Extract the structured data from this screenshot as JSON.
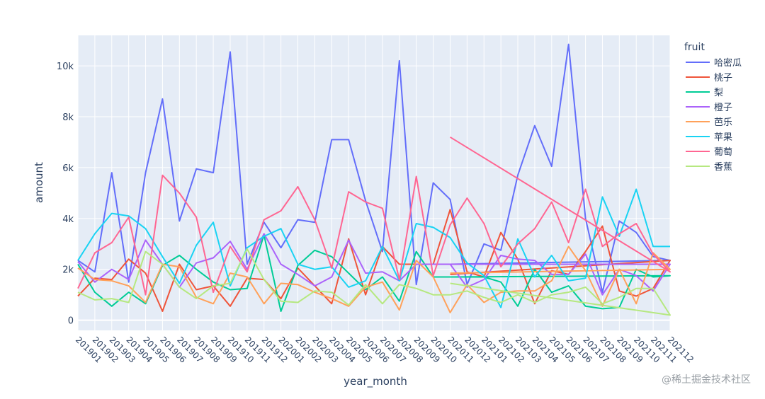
{
  "chart_data": {
    "type": "line",
    "xlabel": "year_month",
    "ylabel": "amount",
    "legend_title": "fruit",
    "legend_position": "right",
    "grid": true,
    "ylim": [
      -400,
      11200
    ],
    "yticks": [
      0,
      2000,
      4000,
      6000,
      8000,
      10000
    ],
    "ytick_labels": [
      "0",
      "2k",
      "4k",
      "6k",
      "8k",
      "10k"
    ],
    "categories": [
      "201901",
      "201902",
      "201903",
      "201904",
      "201905",
      "201906",
      "201907",
      "201908",
      "201909",
      "201910",
      "201911",
      "201912",
      "202001",
      "202002",
      "202003",
      "202004",
      "202005",
      "202006",
      "202007",
      "202008",
      "202009",
      "202010",
      "202011",
      "202012",
      "202101",
      "202102",
      "202103",
      "202104",
      "202105",
      "202106",
      "202107",
      "202108",
      "202109",
      "202110",
      "202111",
      "202112"
    ],
    "series": [
      {
        "name": "哈密瓜",
        "color": "#636efa",
        "x": [
          "201901",
          "201902",
          "201903",
          "201904",
          "201905",
          "201906",
          "201907",
          "201908",
          "201909",
          "201910",
          "201911",
          "201912",
          "202001",
          "202002",
          "202003",
          "202004",
          "202005",
          "202006",
          "202007",
          "202008",
          "202009",
          "202010",
          "202011",
          "202012",
          "202101",
          "202102",
          "202103",
          "202104",
          "202105",
          "202106",
          "202107",
          "202108",
          "202109",
          "202110",
          "202111",
          "202112",
          "202011"
        ],
        "values": [
          2350,
          1900,
          5800,
          1500,
          5800,
          8700,
          3900,
          5950,
          5800,
          10550,
          2200,
          3850,
          2850,
          3950,
          3850,
          7100,
          7100,
          4700,
          2700,
          10200,
          1400,
          5400,
          4750,
          1400,
          3000,
          2750,
          5700,
          7650,
          6050,
          10850,
          4000,
          1100,
          3900,
          3450,
          2500,
          2350,
          2200
        ]
      },
      {
        "name": "桃子",
        "color": "#ef553b",
        "x": [
          "201901",
          "201902",
          "201903",
          "201904",
          "201905",
          "201906",
          "201907",
          "201908",
          "201909",
          "201910",
          "201911",
          "201912",
          "202001",
          "202002",
          "202003",
          "202004",
          "202005",
          "202006",
          "202007",
          "202008",
          "202009",
          "202010",
          "202011",
          "202012",
          "202101",
          "202102",
          "202103",
          "202104",
          "202105",
          "202106",
          "202107",
          "202108",
          "202109",
          "202110",
          "202111",
          "202112",
          "202011"
        ],
        "values": [
          950,
          1650,
          1600,
          2400,
          1850,
          350,
          2200,
          1200,
          1350,
          550,
          1650,
          1600,
          850,
          2050,
          1350,
          650,
          3200,
          1000,
          2900,
          2200,
          2200,
          2200,
          4350,
          1900,
          1700,
          3450,
          2400,
          650,
          1950,
          1800,
          2700,
          3700,
          1150,
          950,
          1250,
          2350,
          1800
        ]
      },
      {
        "name": "梨",
        "color": "#00cc96",
        "x": [
          "201901",
          "201902",
          "201903",
          "201904",
          "201905",
          "201906",
          "201907",
          "201908",
          "201909",
          "201910",
          "201911",
          "201912",
          "202001",
          "202002",
          "202003",
          "202004",
          "202005",
          "202006",
          "202007",
          "202008",
          "202009",
          "202010",
          "202011",
          "202012",
          "202101",
          "202102",
          "202103",
          "202104",
          "202105",
          "202106",
          "202107",
          "202108",
          "202109",
          "202110",
          "202111",
          "202112",
          "202011"
        ],
        "values": [
          2200,
          1100,
          550,
          1100,
          650,
          2150,
          2550,
          2000,
          1500,
          1200,
          1250,
          3350,
          350,
          2150,
          2750,
          2500,
          1850,
          1200,
          1700,
          750,
          2700,
          1700,
          1700,
          1700,
          1700,
          1500,
          550,
          2000,
          1100,
          1350,
          550,
          450,
          500,
          2000,
          1700,
          1750,
          1700
        ]
      },
      {
        "name": "橙子",
        "color": "#ab63fa",
        "x": [
          "201901",
          "201902",
          "201903",
          "201904",
          "201905",
          "201906",
          "201907",
          "201908",
          "201909",
          "201910",
          "201911",
          "201912",
          "202001",
          "202002",
          "202003",
          "202004",
          "202005",
          "202006",
          "202007",
          "202008",
          "202009",
          "202010",
          "202011",
          "202012",
          "202101",
          "202102",
          "202103",
          "202104",
          "202105",
          "202106",
          "202107",
          "202108",
          "202109",
          "202110",
          "202111",
          "202112",
          "202011"
        ],
        "values": [
          2300,
          1500,
          2000,
          1600,
          3150,
          2200,
          1300,
          2250,
          2450,
          3100,
          2000,
          3400,
          2200,
          1800,
          1350,
          1700,
          3150,
          1850,
          1900,
          1550,
          2200,
          2200,
          2200,
          1300,
          1600,
          2550,
          2400,
          2350,
          1800,
          1800,
          2600,
          1000,
          2000,
          1750,
          1150,
          2200,
          2200
        ]
      },
      {
        "name": "芭乐",
        "color": "#ffa15a",
        "x": [
          "201901",
          "201902",
          "201903",
          "201904",
          "201905",
          "201906",
          "201907",
          "201908",
          "201909",
          "201910",
          "201911",
          "201912",
          "202001",
          "202002",
          "202003",
          "202004",
          "202005",
          "202006",
          "202007",
          "202008",
          "202009",
          "202010",
          "202011",
          "202012",
          "202101",
          "202102",
          "202103",
          "202104",
          "202105",
          "202106",
          "202107",
          "202108",
          "202109",
          "202110",
          "202111",
          "202112",
          "202011"
        ],
        "values": [
          2050,
          1600,
          1550,
          1350,
          700,
          2200,
          2100,
          900,
          650,
          1850,
          1700,
          650,
          1450,
          1400,
          1100,
          850,
          550,
          1300,
          1500,
          400,
          2350,
          1700,
          300,
          1400,
          700,
          1100,
          1150,
          1150,
          1550,
          2900,
          1950,
          550,
          2000,
          650,
          2650,
          2000,
          1850
        ]
      },
      {
        "name": "苹果",
        "color": "#19d3f3",
        "x": [
          "201901",
          "201902",
          "201903",
          "201904",
          "201905",
          "201906",
          "201907",
          "201908",
          "201909",
          "201910",
          "201911",
          "201912",
          "202001",
          "202002",
          "202003",
          "202004",
          "202005",
          "202006",
          "202007",
          "202008",
          "202009",
          "202010",
          "202011",
          "202012",
          "202101",
          "202102",
          "202103",
          "202104",
          "202105",
          "202106",
          "202107",
          "202108",
          "202109",
          "202110",
          "202111",
          "202112"
        ],
        "values": [
          2350,
          3400,
          4200,
          4100,
          3600,
          2500,
          1450,
          2950,
          3850,
          1350,
          2850,
          3300,
          3600,
          2200,
          2000,
          2100,
          1300,
          1550,
          2900,
          1550,
          3800,
          3650,
          3250,
          2250,
          1750,
          500,
          3200,
          1700,
          2550,
          1550,
          1650,
          4850,
          3300,
          5150,
          2900,
          2900
        ]
      },
      {
        "name": "葡萄",
        "color": "#ff6692",
        "x": [
          "201901",
          "201902",
          "201903",
          "201904",
          "201905",
          "201906",
          "201907",
          "201908",
          "201909",
          "201910",
          "201911",
          "201912",
          "202001",
          "202002",
          "202003",
          "202004",
          "202005",
          "202006",
          "202007",
          "202008",
          "202009",
          "202010",
          "202011",
          "202012",
          "202101",
          "202102",
          "202103",
          "202104",
          "202105",
          "202106",
          "202107",
          "202108",
          "202109",
          "202110",
          "202111",
          "202112",
          "202011"
        ],
        "values": [
          1250,
          2650,
          3050,
          4050,
          1000,
          5700,
          5000,
          4050,
          1100,
          2900,
          1900,
          3950,
          4300,
          5250,
          3950,
          2050,
          5050,
          4650,
          4400,
          1600,
          5650,
          1750,
          3750,
          4800,
          3800,
          2100,
          3000,
          3600,
          4650,
          3050,
          5150,
          2900,
          3400,
          3800,
          2600,
          1900,
          7200
        ]
      },
      {
        "name": "香蕉",
        "color": "#b6e880",
        "x": [
          "201901",
          "201902",
          "201903",
          "201904",
          "201905",
          "201906",
          "201907",
          "201908",
          "201909",
          "201910",
          "201911",
          "201912",
          "202001",
          "202002",
          "202003",
          "202004",
          "202005",
          "202006",
          "202007",
          "202008",
          "202009",
          "202010",
          "202011",
          "202012",
          "202101",
          "202102",
          "202103",
          "202104",
          "202105",
          "202106",
          "202107",
          "202108",
          "202109",
          "202110",
          "202111",
          "202112",
          "202011"
        ],
        "values": [
          1100,
          800,
          850,
          700,
          2700,
          2200,
          1300,
          850,
          1350,
          1450,
          2800,
          1600,
          750,
          700,
          1150,
          1100,
          600,
          1400,
          650,
          1400,
          1250,
          1000,
          1000,
          1150,
          900,
          700,
          1000,
          700,
          1000,
          1100,
          1300,
          650,
          900,
          1250,
          1250,
          200,
          1450
        ]
      }
    ]
  },
  "watermark": "@稀土掘金技术社区"
}
